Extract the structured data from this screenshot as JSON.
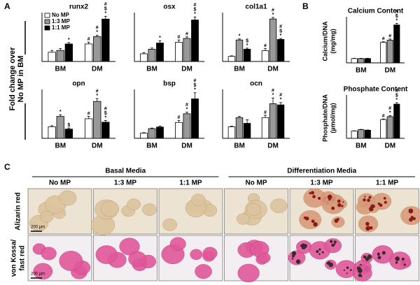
{
  "figure": {
    "panel_labels": [
      "A",
      "B",
      "C"
    ],
    "shared_ylabel": [
      "Fold change over",
      "No MP in BM"
    ]
  },
  "chart_data": [
    {
      "type": "bar",
      "title": "runx2",
      "categories": [
        "BM",
        "DM"
      ],
      "ylim": [
        0,
        5
      ],
      "legend": "upper left",
      "series": [
        {
          "name": "No MP",
          "color": "#ffffff",
          "values": [
            1.0,
            1.9
          ],
          "errors": [
            0.2,
            0.2
          ],
          "marks": [
            [],
            [
              "#"
            ]
          ]
        },
        {
          "name": "1:3 MP",
          "color": "#999999",
          "values": [
            1.2,
            2.7
          ],
          "errors": [
            0.2,
            0.15
          ],
          "marks": [
            [],
            [
              "#",
              "*"
            ]
          ]
        },
        {
          "name": "1:1 MP",
          "color": "#000000",
          "values": [
            1.9,
            4.6
          ],
          "errors": [
            0.15,
            0.3
          ],
          "marks": [
            [
              "*"
            ],
            [
              "#",
              "$",
              "*"
            ]
          ]
        }
      ]
    },
    {
      "type": "bar",
      "title": "osx",
      "categories": [
        "BM",
        "DM"
      ],
      "ylim": [
        0,
        6
      ],
      "series": [
        {
          "color": "#ffffff",
          "values": [
            1.0,
            2.5
          ],
          "errors": [
            0.15,
            0.3
          ],
          "marks": [
            [],
            [
              "#"
            ]
          ]
        },
        {
          "color": "#999999",
          "values": [
            1.6,
            3.0
          ],
          "errors": [
            0.15,
            0.2
          ],
          "marks": [
            [],
            [
              "#"
            ]
          ]
        },
        {
          "color": "#000000",
          "values": [
            2.4,
            5.4
          ],
          "errors": [
            0.3,
            0.4
          ],
          "marks": [
            [
              "*"
            ],
            [
              "#",
              "$",
              "*"
            ]
          ]
        }
      ]
    },
    {
      "type": "bar",
      "title": "col1a1",
      "categories": [
        "BM",
        "DM"
      ],
      "ylim": [
        0,
        9
      ],
      "series": [
        {
          "color": "#ffffff",
          "values": [
            1.0,
            2.1
          ],
          "errors": [
            0.1,
            0.4
          ],
          "marks": [
            [],
            [
              "#"
            ]
          ]
        },
        {
          "color": "#999999",
          "values": [
            4.2,
            8.3
          ],
          "errors": [
            0.2,
            0.3
          ],
          "marks": [
            [
              "*"
            ],
            [
              "#",
              "*"
            ]
          ]
        },
        {
          "color": "#000000",
          "values": [
            2.4,
            4.3
          ],
          "errors": [
            0.2,
            0.2
          ],
          "marks": [
            [
              "$",
              "*"
            ],
            [
              "#",
              "$",
              "*"
            ]
          ]
        }
      ]
    },
    {
      "type": "bar",
      "title": "opn",
      "categories": [
        "BM",
        "DM"
      ],
      "ylim": [
        0,
        4
      ],
      "series": [
        {
          "color": "#ffffff",
          "values": [
            1.0,
            1.7
          ],
          "errors": [
            0.1,
            0.2
          ],
          "marks": [
            [],
            [
              "#"
            ]
          ]
        },
        {
          "color": "#999999",
          "values": [
            1.9,
            3.2
          ],
          "errors": [
            0.15,
            0.25
          ],
          "marks": [
            [
              "*"
            ],
            [
              "#",
              "*"
            ]
          ]
        },
        {
          "color": "#000000",
          "values": [
            0.8,
            1.4
          ],
          "errors": [
            0.1,
            0.15
          ],
          "marks": [
            [
              "$"
            ],
            [
              "#",
              "$",
              "*"
            ]
          ]
        }
      ]
    },
    {
      "type": "bar",
      "title": "bsp",
      "categories": [
        "BM",
        "DM"
      ],
      "ylim": [
        0,
        9
      ],
      "series": [
        {
          "color": "#ffffff",
          "values": [
            1.0,
            3.1
          ],
          "errors": [
            0.1,
            0.4
          ],
          "marks": [
            [],
            [
              "#"
            ]
          ]
        },
        {
          "color": "#999999",
          "values": [
            1.9,
            4.8
          ],
          "errors": [
            0.1,
            0.3
          ],
          "marks": [
            [],
            [
              "#",
              "*"
            ]
          ]
        },
        {
          "color": "#000000",
          "values": [
            2.2,
            7.7
          ],
          "errors": [
            0.2,
            1.2
          ],
          "marks": [
            [],
            [
              "#",
              "$",
              "*"
            ]
          ]
        }
      ]
    },
    {
      "type": "bar",
      "title": "ocn",
      "categories": [
        "BM",
        "DM"
      ],
      "ylim": [
        0,
        4
      ],
      "series": [
        {
          "color": "#ffffff",
          "values": [
            1.0,
            1.8
          ],
          "errors": [
            0.05,
            0.2
          ],
          "marks": [
            [],
            [
              "#"
            ]
          ]
        },
        {
          "color": "#999999",
          "values": [
            1.8,
            3.0
          ],
          "errors": [
            0.1,
            0.5
          ],
          "marks": [
            [],
            [
              "#",
              "*"
            ]
          ]
        },
        {
          "color": "#000000",
          "values": [
            1.3,
            2.9
          ],
          "errors": [
            0.3,
            0.2
          ],
          "marks": [
            [],
            [
              "#",
              "*"
            ]
          ]
        }
      ]
    },
    {
      "type": "bar",
      "title": "Calcium Content",
      "ylabel": [
        "Calcium/DNA",
        "(mg/mg)"
      ],
      "categories": [
        "BM",
        "DM"
      ],
      "ylim": [
        0,
        0.8
      ],
      "series": [
        {
          "color": "#ffffff",
          "values": [
            0.08,
            0.38
          ],
          "errors": [
            0.005,
            0.01
          ],
          "marks": [
            [],
            [
              "#"
            ]
          ]
        },
        {
          "color": "#999999",
          "values": [
            0.08,
            0.42
          ],
          "errors": [
            0.005,
            0.02
          ],
          "marks": [
            [],
            [
              "#"
            ]
          ]
        },
        {
          "color": "#000000",
          "values": [
            0.08,
            0.7
          ],
          "errors": [
            0.005,
            0.03
          ],
          "marks": [
            [],
            [
              "#",
              "$",
              "*"
            ]
          ]
        }
      ]
    },
    {
      "type": "bar",
      "title": "Phosphate Content",
      "ylabel": [
        "Phosphate/DNA",
        "(µmol/mg)"
      ],
      "categories": [
        "BM",
        "DM"
      ],
      "ylim": [
        0,
        14
      ],
      "series": [
        {
          "color": "#ffffff",
          "values": [
            2.5,
            6.5
          ],
          "errors": [
            0.1,
            0.2
          ],
          "marks": [
            [],
            [
              "#"
            ]
          ]
        },
        {
          "color": "#999999",
          "values": [
            3.0,
            7.5
          ],
          "errors": [
            0.1,
            0.3
          ],
          "marks": [
            [],
            [
              "#",
              "*"
            ]
          ]
        },
        {
          "color": "#000000",
          "values": [
            2.8,
            11.8
          ],
          "errors": [
            0.1,
            0.5
          ],
          "marks": [
            [],
            [
              "#",
              "$",
              "*"
            ]
          ]
        }
      ]
    }
  ],
  "histology": {
    "groups": [
      "Basal Media",
      "Differentiation Media"
    ],
    "columns": [
      "No MP",
      "1:3 MP",
      "1:1 MP",
      "No MP",
      "1:3 MP",
      "1:1 MP"
    ],
    "rows": [
      [
        "Alizarin red"
      ],
      [
        "von Kossa/",
        "fast red"
      ]
    ],
    "scale_bar": "200 µm"
  }
}
